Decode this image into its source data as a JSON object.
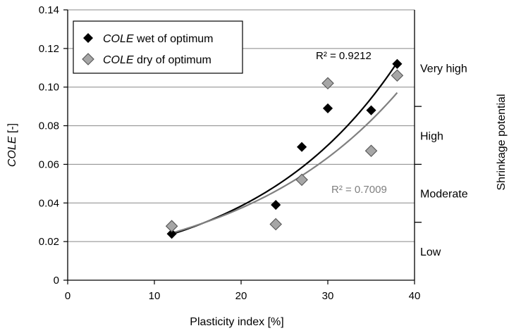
{
  "chart_data": {
    "type": "scatter",
    "title": "",
    "xlabel": "Plasticity index [%]",
    "ylabel_italic": "COLE",
    "ylabel_rest": " [-]",
    "xlim": [
      0,
      40
    ],
    "ylim": [
      0,
      0.14
    ],
    "x_ticks": [
      "0",
      "10",
      "20",
      "30",
      "40"
    ],
    "y_ticks": [
      "0",
      "0.02",
      "0.04",
      "0.06",
      "0.08",
      "0.10",
      "0.12",
      "0.14"
    ],
    "grid": "horizontal",
    "legend_position": "top-left",
    "series": [
      {
        "legend_italic": "COLE",
        "legend_rest": " wet of optimum",
        "marker": "diamond",
        "color": "#000000",
        "points": [
          [
            12,
            0.024
          ],
          [
            24,
            0.039
          ],
          [
            27,
            0.069
          ],
          [
            30,
            0.089
          ],
          [
            35,
            0.088
          ],
          [
            38,
            0.112
          ]
        ],
        "trendline": {
          "type": "exponential",
          "r2_label": "R² = 0.9212",
          "color": "#000000",
          "a": 0.01162,
          "b": 0.0598
        }
      },
      {
        "legend_italic": "COLE",
        "legend_rest": " dry of optimum",
        "marker": "diamond",
        "color": "#a6a6a6",
        "points": [
          [
            12,
            0.028
          ],
          [
            24,
            0.029
          ],
          [
            27,
            0.052
          ],
          [
            30,
            0.102
          ],
          [
            35,
            0.067
          ],
          [
            38,
            0.106
          ]
        ],
        "trendline": {
          "type": "exponential",
          "r2_label": "R² = 0.7009",
          "color": "#808080",
          "a": 0.01291,
          "b": 0.0531
        }
      }
    ],
    "secondary_axis": {
      "label": "Shrinkage potential",
      "zones": [
        {
          "label": "Low",
          "from": 0,
          "to": 0.03
        },
        {
          "label": "Moderate",
          "from": 0.03,
          "to": 0.06
        },
        {
          "label": "High",
          "from": 0.06,
          "to": 0.09
        },
        {
          "label": "Very high",
          "from": 0.09,
          "to": 0.14
        }
      ],
      "boundaries": [
        0.03,
        0.06,
        0.09
      ]
    }
  }
}
